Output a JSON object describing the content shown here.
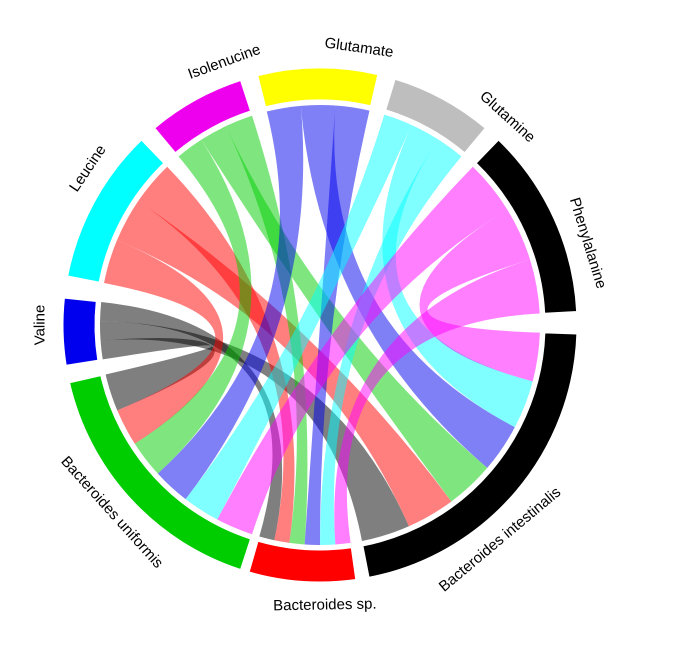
{
  "diagram": {
    "type": "chord",
    "sectors": [
      {
        "id": "valine",
        "label": "Valine",
        "color": "#0000EE",
        "group": "metabolite"
      },
      {
        "id": "leucine",
        "label": "Leucine",
        "color": "#00FFFF",
        "group": "metabolite"
      },
      {
        "id": "isoleucine",
        "label": "Isolenucine",
        "color": "#EE00EE",
        "group": "metabolite"
      },
      {
        "id": "glutamate",
        "label": "Glutamate",
        "color": "#FFFF00",
        "group": "metabolite"
      },
      {
        "id": "glutamine",
        "label": "Glutamine",
        "color": "#BEBEBE",
        "group": "metabolite"
      },
      {
        "id": "phenylalanine",
        "label": "Phenylalanine",
        "color": "#000000",
        "group": "metabolite"
      },
      {
        "id": "b_intestinalis",
        "label": "Bacteroides intestinalis",
        "color": "#000000",
        "group": "bacteria"
      },
      {
        "id": "b_sp",
        "label": "Bacteroides sp.",
        "color": "#FF0000",
        "group": "bacteria"
      },
      {
        "id": "b_uniformis",
        "label": "Bacteroides uniformis",
        "color": "#00CD00",
        "group": "bacteria"
      }
    ],
    "links": [
      {
        "from": "valine",
        "to": "b_uniformis",
        "color": "#000000"
      },
      {
        "from": "valine",
        "to": "b_intestinalis",
        "color": "#000000"
      },
      {
        "from": "valine",
        "to": "b_sp",
        "color": "#000000"
      },
      {
        "from": "leucine",
        "to": "b_uniformis",
        "color": "#FF0000"
      },
      {
        "from": "leucine",
        "to": "b_intestinalis",
        "color": "#FF0000"
      },
      {
        "from": "leucine",
        "to": "b_sp",
        "color": "#FF0000"
      },
      {
        "from": "isoleucine",
        "to": "b_uniformis",
        "color": "#00CD00"
      },
      {
        "from": "isoleucine",
        "to": "b_intestinalis",
        "color": "#00CD00"
      },
      {
        "from": "isoleucine",
        "to": "b_sp",
        "color": "#00CD00"
      },
      {
        "from": "glutamate",
        "to": "b_uniformis",
        "color": "#0000EE"
      },
      {
        "from": "glutamate",
        "to": "b_intestinalis",
        "color": "#0000EE"
      },
      {
        "from": "glutamate",
        "to": "b_sp",
        "color": "#0000EE"
      },
      {
        "from": "glutamine",
        "to": "b_uniformis",
        "color": "#00FFFF"
      },
      {
        "from": "glutamine",
        "to": "b_intestinalis",
        "color": "#00FFFF"
      },
      {
        "from": "glutamine",
        "to": "b_sp",
        "color": "#00FFFF"
      },
      {
        "from": "phenylalanine",
        "to": "b_uniformis",
        "color": "#FF00FF"
      },
      {
        "from": "phenylalanine",
        "to": "b_intestinalis",
        "color": "#FF00FF"
      },
      {
        "from": "phenylalanine",
        "to": "b_sp",
        "color": "#FF00FF"
      }
    ]
  }
}
